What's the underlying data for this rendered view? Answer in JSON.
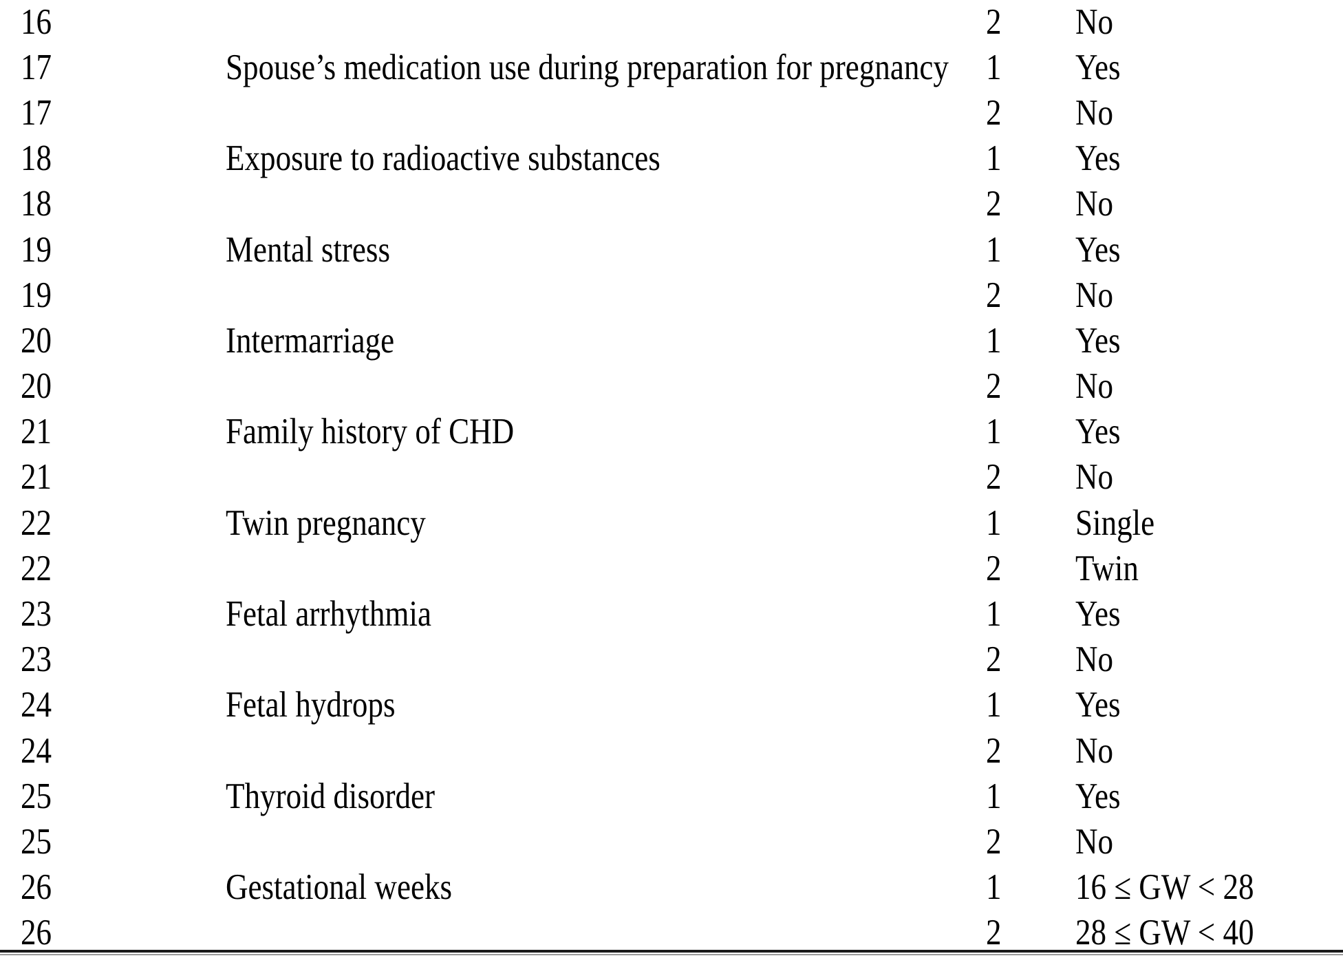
{
  "colors": {
    "background": "#ffffff",
    "text": "#000000",
    "rule_main": "#1a1a1a",
    "rule_shadow": "#9a9a9a"
  },
  "table": {
    "rows": [
      {
        "number": "16",
        "variable": "",
        "code": "2",
        "label": "No"
      },
      {
        "number": "17",
        "variable": "Spouse’s medication use during preparation for pregnancy",
        "code": "1",
        "label": "Yes"
      },
      {
        "number": "17",
        "variable": "",
        "code": "2",
        "label": "No"
      },
      {
        "number": "18",
        "variable": "Exposure to radioactive substances",
        "code": "1",
        "label": "Yes"
      },
      {
        "number": "18",
        "variable": "",
        "code": "2",
        "label": "No"
      },
      {
        "number": "19",
        "variable": "Mental stress",
        "code": "1",
        "label": "Yes"
      },
      {
        "number": "19",
        "variable": "",
        "code": "2",
        "label": "No"
      },
      {
        "number": "20",
        "variable": "Intermarriage",
        "code": "1",
        "label": "Yes"
      },
      {
        "number": "20",
        "variable": "",
        "code": "2",
        "label": "No"
      },
      {
        "number": "21",
        "variable": "Family history of CHD",
        "code": "1",
        "label": "Yes"
      },
      {
        "number": "21",
        "variable": "",
        "code": "2",
        "label": "No"
      },
      {
        "number": "22",
        "variable": "Twin pregnancy",
        "code": "1",
        "label": "Single"
      },
      {
        "number": "22",
        "variable": "",
        "code": "2",
        "label": "Twin"
      },
      {
        "number": "23",
        "variable": "Fetal arrhythmia",
        "code": "1",
        "label": "Yes"
      },
      {
        "number": "23",
        "variable": "",
        "code": "2",
        "label": "No"
      },
      {
        "number": "24",
        "variable": "Fetal hydrops",
        "code": "1",
        "label": "Yes"
      },
      {
        "number": "24",
        "variable": "",
        "code": "2",
        "label": "No"
      },
      {
        "number": "25",
        "variable": "Thyroid disorder",
        "code": "1",
        "label": "Yes"
      },
      {
        "number": "25",
        "variable": "",
        "code": "2",
        "label": "No"
      },
      {
        "number": "26",
        "variable": "Gestational weeks",
        "code": "1",
        "label": "16 ≤ GW < 28"
      },
      {
        "number": "26",
        "variable": "",
        "code": "2",
        "label": "28 ≤ GW < 40"
      }
    ]
  }
}
